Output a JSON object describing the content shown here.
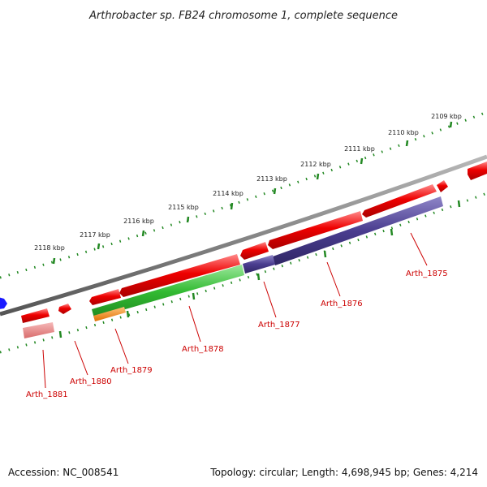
{
  "title": "Arthrobacter sp. FB24 chromosome 1, complete sequence",
  "footer": {
    "accession": "Accession: NC_008541",
    "topology": "Topology: circular; Length: 4,698,945 bp; Genes: 4,214"
  },
  "kbp_labels": [
    "2109 kbp",
    "2110 kbp",
    "2111 kbp",
    "2112 kbp",
    "2113 kbp",
    "2114 kbp",
    "2115 kbp",
    "2116 kbp",
    "2117 kbp",
    "2118 kbp"
  ],
  "genes": [
    "Arth_1875",
    "Arth_1876",
    "Arth_1877",
    "Arth_1878",
    "Arth_1879",
    "Arth_1880",
    "Arth_1881"
  ],
  "colors": {
    "forward_gene": "#ee0000",
    "cds_green": "#33bb33",
    "cds_purple": "#4a3d8f",
    "cds_orange": "#ff8800",
    "cds_pink": "#ee8888",
    "backbone": "#777777",
    "ruler": "#228822",
    "label": "#cc0000"
  }
}
